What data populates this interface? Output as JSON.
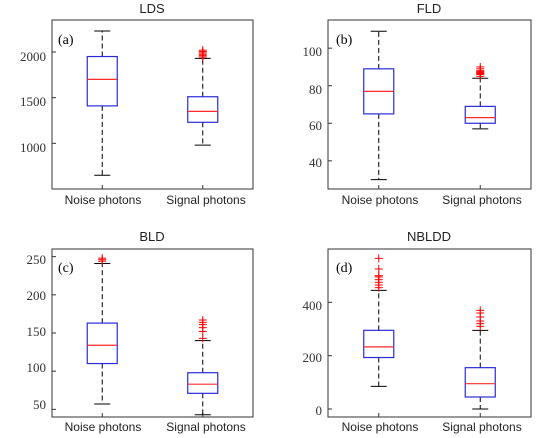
{
  "chart_data": [
    {
      "type": "box",
      "title": "LDS",
      "panel_label": "(a)",
      "categories": [
        "Noise photons",
        "Signal photons"
      ],
      "ylim": [
        500,
        2350
      ],
      "yticks": [
        "1000",
        "1500",
        "2000"
      ],
      "boxes": [
        {
          "name": "Noise photons",
          "min": 650,
          "q1": 1410,
          "median": 1700,
          "q3": 1950,
          "max": 2230,
          "outliers": []
        },
        {
          "name": "Signal photons",
          "min": 980,
          "q1": 1230,
          "median": 1350,
          "q3": 1510,
          "max": 1930,
          "outliers": [
            1945,
            1960,
            1975,
            1990,
            2005,
            2020
          ]
        }
      ]
    },
    {
      "type": "box",
      "title": "FLD",
      "panel_label": "(b)",
      "categories": [
        "Noise photons",
        "Signal photons"
      ],
      "ylim": [
        25,
        115
      ],
      "yticks": [
        "40",
        "60",
        "80",
        "100"
      ],
      "boxes": [
        {
          "name": "Noise photons",
          "min": 30,
          "q1": 65,
          "median": 77,
          "q3": 89,
          "max": 109,
          "outliers": []
        },
        {
          "name": "Signal photons",
          "min": 57,
          "q1": 60,
          "median": 63,
          "q3": 69,
          "max": 84,
          "outliers": [
            85,
            86,
            86.5,
            87,
            87.5,
            88,
            89,
            90
          ]
        }
      ]
    },
    {
      "type": "box",
      "title": "BLD",
      "panel_label": "(c)",
      "categories": [
        "Noise photons",
        "Signal photons"
      ],
      "ylim": [
        40,
        260
      ],
      "yticks": [
        "50",
        "100",
        "150",
        "200",
        "250"
      ],
      "boxes": [
        {
          "name": "Noise photons",
          "min": 57,
          "q1": 110,
          "median": 134,
          "q3": 163,
          "max": 241,
          "outliers": [
            244,
            246,
            248
          ]
        },
        {
          "name": "Signal photons",
          "min": 43,
          "q1": 71,
          "median": 83,
          "q3": 98,
          "max": 140,
          "outliers": [
            143,
            152,
            157,
            161,
            164,
            167
          ]
        }
      ]
    },
    {
      "type": "box",
      "title": "NBLDD",
      "panel_label": "(d)",
      "categories": [
        "Noise photons",
        "Signal photons"
      ],
      "ylim": [
        -30,
        600
      ],
      "yticks": [
        "0",
        "200",
        "400"
      ],
      "boxes": [
        {
          "name": "Noise photons",
          "min": 85,
          "q1": 193,
          "median": 233,
          "q3": 295,
          "max": 445,
          "outliers": [
            455,
            465,
            475,
            485,
            495,
            500,
            525,
            565
          ]
        },
        {
          "name": "Signal photons",
          "min": 0,
          "q1": 45,
          "median": 95,
          "q3": 155,
          "max": 295,
          "outliers": [
            310,
            320,
            330,
            345,
            360,
            370
          ]
        }
      ]
    }
  ],
  "colors": {
    "box": "#2b2bd9",
    "median": "#ff2a2a",
    "outlier": "#ff0000",
    "whisker": "#000000",
    "axis": "#333333"
  }
}
